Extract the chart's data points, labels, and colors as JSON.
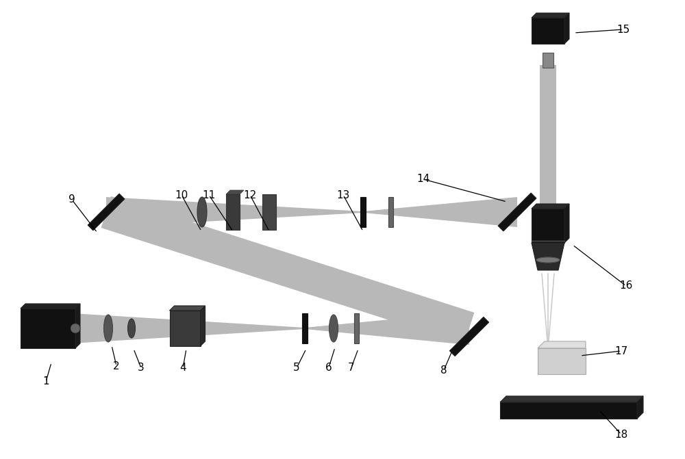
{
  "bg": "#ffffff",
  "black": "#111111",
  "dark": "#222222",
  "mid_dark": "#333333",
  "mid": "#555555",
  "mid2": "#666666",
  "mid_light": "#888888",
  "light": "#aaaaaa",
  "beam": "#b8b8b8",
  "beam_light": "#cccccc",
  "sample_c": "#d0d0d0",
  "sample_top": "#e0e0e0",
  "figw": 10.0,
  "figh": 6.71,
  "dpi": 100
}
